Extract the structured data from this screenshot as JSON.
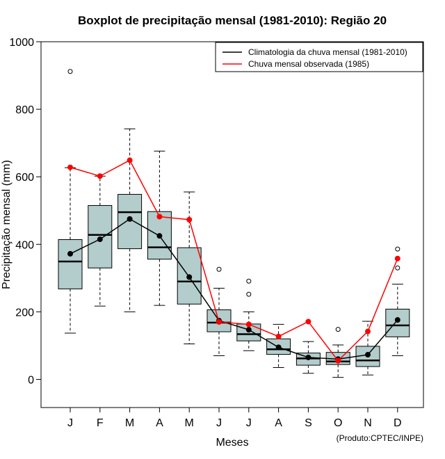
{
  "chart_data": {
    "type": "boxplot",
    "title": "Boxplot de precipitação mensal (1981-2010): Região 20",
    "xlabel": "Meses",
    "ylabel": "Precipitação mensal (mm)",
    "ylim": [
      -85,
      1000
    ],
    "yticks": [
      0,
      200,
      400,
      600,
      800,
      1000
    ],
    "categories": [
      "J",
      "F",
      "M",
      "A",
      "M",
      "J",
      "J",
      "A",
      "S",
      "O",
      "N",
      "D"
    ],
    "boxes": [
      {
        "min": 137,
        "q1": 268,
        "median": 349,
        "q3": 414,
        "max": 627,
        "outliers": [
          912
        ]
      },
      {
        "min": 217,
        "q1": 330,
        "median": 428,
        "q3": 515,
        "max": 602,
        "outliers": []
      },
      {
        "min": 200,
        "q1": 387,
        "median": 495,
        "q3": 548,
        "max": 742,
        "outliers": []
      },
      {
        "min": 219,
        "q1": 356,
        "median": 391,
        "q3": 497,
        "max": 676,
        "outliers": []
      },
      {
        "min": 105,
        "q1": 223,
        "median": 290,
        "q3": 390,
        "max": 555,
        "outliers": []
      },
      {
        "min": 70,
        "q1": 141,
        "median": 168,
        "q3": 206,
        "max": 270,
        "outliers": [
          326
        ]
      },
      {
        "min": 85,
        "q1": 114,
        "median": 134,
        "q3": 164,
        "max": 200,
        "outliers": [
          252,
          291
        ]
      },
      {
        "min": 35,
        "q1": 74,
        "median": 89,
        "q3": 120,
        "max": 163,
        "outliers": []
      },
      {
        "min": 18,
        "q1": 42,
        "median": 62,
        "q3": 78,
        "max": 112,
        "outliers": []
      },
      {
        "min": 6,
        "q1": 44,
        "median": 53,
        "q3": 80,
        "max": 102,
        "outliers": [
          148
        ]
      },
      {
        "min": 13,
        "q1": 38,
        "median": 56,
        "q3": 98,
        "max": 172,
        "outliers": []
      },
      {
        "min": 70,
        "q1": 126,
        "median": 160,
        "q3": 208,
        "max": 282,
        "outliers": [
          330,
          386
        ]
      }
    ],
    "series": [
      {
        "name": "Climatologia da chuva mensal (1981-2010)",
        "color": "#000000",
        "values": [
          372,
          415,
          475,
          425,
          303,
          174,
          147,
          95,
          65,
          60,
          73,
          176
        ]
      },
      {
        "name": "Chuva mensal observada (1985)",
        "color": "#ff0000",
        "values": [
          628,
          602,
          649,
          482,
          473,
          170,
          163,
          127,
          171,
          55,
          142,
          358
        ]
      }
    ],
    "legend_position": "top-right",
    "box_fill": "#b3cccc",
    "credit": "(Produto:CPTEC/INPE)"
  }
}
